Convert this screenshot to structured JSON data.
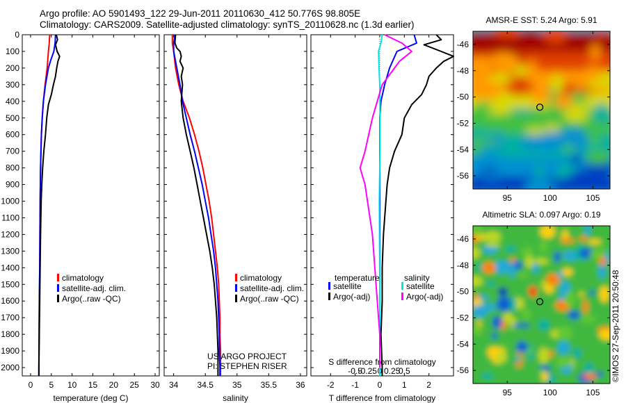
{
  "header": {
    "line1": "Argo profile: AO 5901493_122 29-Jun-2011 20110630_412 50.776S 98.805E",
    "line2": "Climatology: CARS2009. Satellite-adjusted climatology: synTS_20110628.nc (1.3d earlier)"
  },
  "stamp": "©IMOS 27-Sep-2011 20:50:48",
  "colors": {
    "climatology": "#ff0000",
    "satellite": "#0000ff",
    "argo": "#000000",
    "sat_salinity": "#00e5e5",
    "argo_salinity": "#ff00ff"
  },
  "chart_data": [
    {
      "type": "line",
      "id": "temperature",
      "xlabel": "temperature (deg C)",
      "xlim": [
        -2,
        31
      ],
      "ylim": [
        0,
        2050
      ],
      "xticks": [
        0,
        5,
        10,
        15,
        20,
        25,
        30
      ],
      "yticks": [
        0,
        100,
        200,
        300,
        400,
        500,
        600,
        700,
        800,
        900,
        1000,
        1100,
        1200,
        1300,
        1400,
        1500,
        1600,
        1700,
        1800,
        1900,
        2000
      ],
      "legend": [
        "climatology",
        "satellite-adj. clim.",
        "Argo(..raw -QC)"
      ],
      "series": [
        {
          "name": "climatology",
          "color": "#ff0000",
          "points": [
            [
              4.6,
              0
            ],
            [
              4.5,
              50
            ],
            [
              4.3,
              100
            ],
            [
              4.0,
              200
            ],
            [
              3.5,
              300
            ],
            [
              3.1,
              400
            ],
            [
              2.8,
              500
            ],
            [
              2.6,
              600
            ],
            [
              2.5,
              700
            ],
            [
              2.4,
              800
            ],
            [
              2.35,
              900
            ],
            [
              2.3,
              1000
            ],
            [
              2.25,
              1200
            ],
            [
              2.2,
              1400
            ],
            [
              2.1,
              1600
            ],
            [
              2.05,
              1800
            ],
            [
              2.0,
              2000
            ],
            [
              2.0,
              2050
            ]
          ]
        },
        {
          "name": "satellite-adj. clim.",
          "color": "#0000ff",
          "points": [
            [
              6.0,
              0
            ],
            [
              5.9,
              50
            ],
            [
              5.6,
              100
            ],
            [
              4.9,
              150
            ],
            [
              4.3,
              200
            ],
            [
              3.6,
              300
            ],
            [
              3.1,
              400
            ],
            [
              2.8,
              500
            ],
            [
              2.6,
              600
            ],
            [
              2.5,
              700
            ],
            [
              2.4,
              800
            ],
            [
              2.35,
              900
            ],
            [
              2.3,
              1000
            ],
            [
              2.25,
              1200
            ],
            [
              2.2,
              1400
            ],
            [
              2.1,
              1600
            ],
            [
              2.05,
              1800
            ],
            [
              2.0,
              2000
            ],
            [
              2.0,
              2050
            ]
          ]
        },
        {
          "name": "Argo(..raw -QC)",
          "color": "#000000",
          "points": [
            [
              6.2,
              0
            ],
            [
              6.5,
              30
            ],
            [
              6.0,
              60
            ],
            [
              6.4,
              100
            ],
            [
              7.0,
              130
            ],
            [
              6.6,
              160
            ],
            [
              6.3,
              200
            ],
            [
              6.0,
              250
            ],
            [
              5.5,
              300
            ],
            [
              5.0,
              360
            ],
            [
              4.3,
              420
            ],
            [
              3.9,
              500
            ],
            [
              3.6,
              600
            ],
            [
              3.2,
              700
            ],
            [
              2.9,
              800
            ],
            [
              2.7,
              900
            ],
            [
              2.55,
              1000
            ],
            [
              2.4,
              1200
            ],
            [
              2.3,
              1400
            ],
            [
              2.2,
              1600
            ],
            [
              2.1,
              1800
            ],
            [
              2.0,
              2000
            ],
            [
              2.0,
              2050
            ]
          ]
        }
      ]
    },
    {
      "type": "line",
      "id": "salinity",
      "xlabel": "salinity",
      "xlim": [
        33.85,
        36.1
      ],
      "ylim": [
        0,
        2050
      ],
      "xticks": [
        34,
        34.5,
        35,
        35.5,
        36
      ],
      "legend": [
        "climatology",
        "satellite-adj. clim.",
        "Argo(..raw -QC)"
      ],
      "annotation": [
        "US ARGO PROJECT",
        "PI: STEPHEN RISER"
      ],
      "series": [
        {
          "name": "climatology",
          "color": "#ff0000",
          "points": [
            [
              33.98,
              0
            ],
            [
              33.98,
              50
            ],
            [
              34.0,
              100
            ],
            [
              34.03,
              200
            ],
            [
              34.08,
              300
            ],
            [
              34.15,
              400
            ],
            [
              34.25,
              500
            ],
            [
              34.33,
              600
            ],
            [
              34.4,
              700
            ],
            [
              34.46,
              800
            ],
            [
              34.51,
              900
            ],
            [
              34.56,
              1000
            ],
            [
              34.6,
              1100
            ],
            [
              34.63,
              1200
            ],
            [
              34.66,
              1300
            ],
            [
              34.69,
              1400
            ],
            [
              34.71,
              1500
            ],
            [
              34.72,
              1600
            ],
            [
              34.73,
              1700
            ],
            [
              34.73,
              1800
            ],
            [
              34.74,
              1900
            ],
            [
              34.74,
              2000
            ],
            [
              34.74,
              2050
            ]
          ]
        },
        {
          "name": "satellite-adj. clim.",
          "color": "#0000ff",
          "points": [
            [
              34.02,
              0
            ],
            [
              34.0,
              50
            ],
            [
              34.0,
              100
            ],
            [
              34.05,
              200
            ],
            [
              34.1,
              300
            ],
            [
              34.14,
              400
            ],
            [
              34.2,
              500
            ],
            [
              34.26,
              600
            ],
            [
              34.33,
              700
            ],
            [
              34.39,
              800
            ],
            [
              34.45,
              900
            ],
            [
              34.5,
              1000
            ],
            [
              34.55,
              1100
            ],
            [
              34.59,
              1200
            ],
            [
              34.63,
              1300
            ],
            [
              34.66,
              1400
            ],
            [
              34.68,
              1500
            ],
            [
              34.7,
              1600
            ],
            [
              34.71,
              1700
            ],
            [
              34.72,
              1800
            ],
            [
              34.72,
              1900
            ],
            [
              34.73,
              2000
            ],
            [
              34.73,
              2050
            ]
          ]
        },
        {
          "name": "Argo(..raw -QC)",
          "color": "#000000",
          "points": [
            [
              34.03,
              0
            ],
            [
              34.02,
              50
            ],
            [
              34.05,
              80
            ],
            [
              34.1,
              100
            ],
            [
              34.12,
              130
            ],
            [
              34.1,
              160
            ],
            [
              34.15,
              200
            ],
            [
              34.12,
              250
            ],
            [
              34.14,
              300
            ],
            [
              34.12,
              400
            ],
            [
              34.15,
              500
            ],
            [
              34.2,
              600
            ],
            [
              34.26,
              700
            ],
            [
              34.32,
              800
            ],
            [
              34.37,
              900
            ],
            [
              34.42,
              1000
            ],
            [
              34.47,
              1100
            ],
            [
              34.52,
              1200
            ],
            [
              34.57,
              1300
            ],
            [
              34.61,
              1400
            ],
            [
              34.64,
              1500
            ],
            [
              34.66,
              1600
            ],
            [
              34.68,
              1700
            ],
            [
              34.69,
              1800
            ],
            [
              34.7,
              1900
            ],
            [
              34.7,
              2000
            ],
            [
              34.7,
              2050
            ]
          ]
        }
      ]
    },
    {
      "type": "line",
      "id": "difference",
      "xlabel": "T difference from climatology",
      "xlabel_top": "S difference from climatology",
      "xlim": [
        -2.8,
        3.0
      ],
      "ylim": [
        0,
        2050
      ],
      "xticks": [
        -2,
        -1,
        0,
        1,
        2
      ],
      "xticks_s": [
        "-0.5",
        "-0.25",
        "0",
        "0.25",
        "0.5"
      ],
      "legend_headers": [
        "temperature",
        "salinity"
      ],
      "legend": [
        "satellite",
        "Argo(-adj)",
        "satellite",
        "Argo(-adj)"
      ],
      "series": [
        {
          "name": "satellite",
          "group": "temperature",
          "color": "#0000ff",
          "points": [
            [
              1.4,
              0
            ],
            [
              1.5,
              50
            ],
            [
              0.7,
              100
            ],
            [
              0.4,
              200
            ],
            [
              0.2,
              300
            ],
            [
              0.05,
              400
            ],
            [
              0.0,
              500
            ],
            [
              0.0,
              700
            ],
            [
              0.0,
              1000
            ],
            [
              0.0,
              1500
            ],
            [
              0.0,
              2050
            ]
          ]
        },
        {
          "name": "Argo(-adj)",
          "group": "temperature",
          "color": "#000000",
          "points": [
            [
              2.3,
              0
            ],
            [
              2.5,
              30
            ],
            [
              1.8,
              60
            ],
            [
              2.5,
              100
            ],
            [
              3.0,
              130
            ],
            [
              2.6,
              160
            ],
            [
              2.3,
              200
            ],
            [
              2.0,
              250
            ],
            [
              1.9,
              300
            ],
            [
              1.7,
              360
            ],
            [
              1.3,
              420
            ],
            [
              1.0,
              500
            ],
            [
              0.9,
              600
            ],
            [
              0.6,
              700
            ],
            [
              0.4,
              800
            ],
            [
              0.3,
              900
            ],
            [
              0.25,
              1000
            ],
            [
              0.15,
              1200
            ],
            [
              0.1,
              1400
            ],
            [
              0.1,
              1600
            ],
            [
              0.05,
              1800
            ],
            [
              0.1,
              2000
            ],
            [
              0.1,
              2050
            ]
          ]
        },
        {
          "name": "satellite",
          "group": "salinity",
          "color": "#00e5e5",
          "points": [
            [
              0.1,
              0
            ],
            [
              0.05,
              50
            ],
            [
              -0.05,
              100
            ],
            [
              -0.03,
              200
            ],
            [
              0.0,
              300
            ],
            [
              0.01,
              500
            ],
            [
              0.01,
              700
            ],
            [
              -0.02,
              1000
            ],
            [
              0.0,
              1500
            ],
            [
              0.0,
              2000
            ],
            [
              0.0,
              2050
            ]
          ]
        },
        {
          "name": "Argo(-adj)",
          "group": "salinity",
          "color": "#ff00ff",
          "points": [
            [
              0.2,
              0
            ],
            [
              0.9,
              50
            ],
            [
              1.3,
              100
            ],
            [
              0.8,
              160
            ],
            [
              0.6,
              200
            ],
            [
              0.3,
              260
            ],
            [
              0.1,
              300
            ],
            [
              -0.1,
              400
            ],
            [
              -0.3,
              500
            ],
            [
              -0.6,
              700
            ],
            [
              -0.8,
              800
            ],
            [
              -0.6,
              900
            ],
            [
              -0.5,
              1000
            ],
            [
              -0.3,
              1200
            ],
            [
              -0.2,
              1400
            ],
            [
              -0.1,
              1600
            ],
            [
              0.0,
              1800
            ],
            [
              0.0,
              2000
            ]
          ]
        }
      ]
    },
    {
      "type": "heatmap",
      "id": "sst",
      "title": "AMSR-E SST: 5.24  Argo: 5.91",
      "xlim": [
        91,
        107
      ],
      "ylim": [
        -57,
        -45
      ],
      "xticks": [
        95,
        100,
        105
      ],
      "yticks": [
        -46,
        -48,
        -50,
        -52,
        -54,
        -56
      ],
      "marker": {
        "lon": 98.805,
        "lat": -50.776
      }
    },
    {
      "type": "heatmap",
      "id": "sla",
      "title": "Altimetric SLA: 0.097  Argo: 0.19",
      "xlim": [
        91,
        107
      ],
      "ylim": [
        -57,
        -45
      ],
      "xticks": [
        95,
        100,
        105
      ],
      "yticks": [
        -46,
        -48,
        -50,
        -52,
        -54,
        -56
      ],
      "marker": {
        "lon": 98.805,
        "lat": -50.776
      }
    }
  ]
}
